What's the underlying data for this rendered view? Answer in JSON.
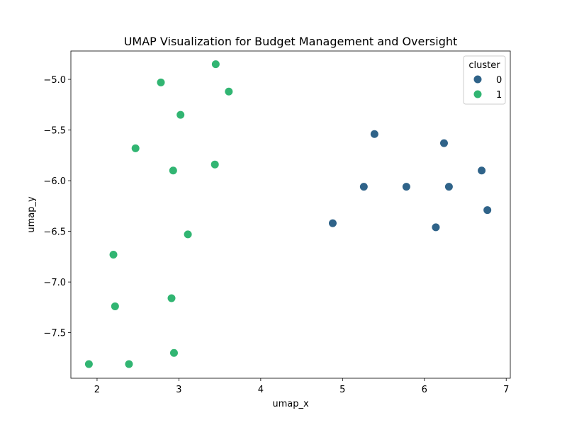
{
  "chart_data": {
    "type": "scatter",
    "title": "UMAP Visualization for Budget Management and Oversight",
    "xlabel": "umap_x",
    "ylabel": "umap_y",
    "xlim": [
      1.68,
      7.05
    ],
    "ylim": [
      -7.95,
      -4.72
    ],
    "xticks": [
      2,
      3,
      4,
      5,
      6,
      7
    ],
    "yticks": [
      -5.0,
      -5.5,
      -6.0,
      -6.5,
      -7.0,
      -7.5
    ],
    "xtick_labels": [
      "2",
      "3",
      "4",
      "5",
      "6",
      "7"
    ],
    "ytick_labels": [
      "−5.0",
      "−5.5",
      "−6.0",
      "−6.5",
      "−7.0",
      "−7.5"
    ],
    "grid": false,
    "legend": {
      "title": "cluster",
      "placement": "top-right",
      "entries": [
        "0",
        "1"
      ]
    },
    "series": [
      {
        "name": "0",
        "color": "#2f6389",
        "points": [
          [
            5.39,
            -5.54
          ],
          [
            6.24,
            -5.63
          ],
          [
            6.7,
            -5.9
          ],
          [
            5.26,
            -6.06
          ],
          [
            5.78,
            -6.06
          ],
          [
            6.3,
            -6.06
          ],
          [
            6.77,
            -6.29
          ],
          [
            4.88,
            -6.42
          ],
          [
            6.14,
            -6.46
          ]
        ]
      },
      {
        "name": "1",
        "color": "#31b572",
        "points": [
          [
            3.45,
            -4.85
          ],
          [
            2.78,
            -5.03
          ],
          [
            3.61,
            -5.12
          ],
          [
            3.02,
            -5.35
          ],
          [
            2.47,
            -5.68
          ],
          [
            3.44,
            -5.84
          ],
          [
            2.93,
            -5.9
          ],
          [
            3.11,
            -6.53
          ],
          [
            2.2,
            -6.73
          ],
          [
            2.91,
            -7.16
          ],
          [
            2.22,
            -7.24
          ],
          [
            2.94,
            -7.7
          ],
          [
            1.9,
            -7.81
          ],
          [
            2.39,
            -7.81
          ]
        ]
      }
    ]
  }
}
